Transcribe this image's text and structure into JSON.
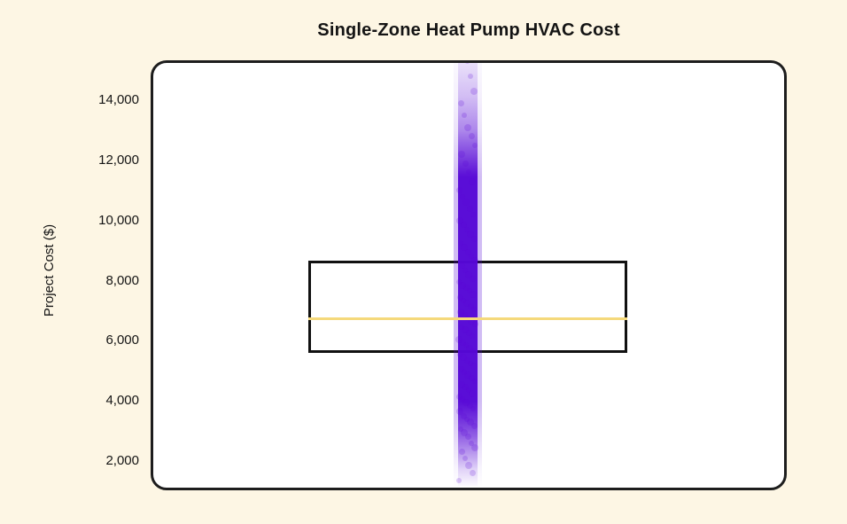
{
  "chart_data": {
    "type": "box",
    "title": "Single-Zone Heat Pump HVAC Cost",
    "ylabel": "Project Cost ($)",
    "xlabel": "",
    "ylim": [
      1000,
      15400
    ],
    "yticks": [
      2000,
      4000,
      6000,
      8000,
      10000,
      12000,
      14000
    ],
    "ytick_labels": [
      "2,000",
      "4,000",
      "6,000",
      "8,000",
      "10,000",
      "12,000",
      "14,000"
    ],
    "grid": false,
    "legend": "none",
    "box": {
      "q1": 5600,
      "median": 6700,
      "q3": 8650
    },
    "strip_overlay": {
      "description": "dense jittered strip of project-cost samples, fading at extremes",
      "min": 1350,
      "max": 15300,
      "points": [
        1350,
        1600,
        1850,
        2100,
        2300,
        2450,
        2600,
        2800,
        2950,
        3050,
        3150,
        3300,
        3400,
        3500,
        3650,
        3750,
        3850,
        3950,
        4050,
        4150,
        4250,
        4350,
        4450,
        4550,
        4650,
        4750,
        4850,
        4950,
        5050,
        5150,
        5250,
        5350,
        5450,
        5550,
        5650,
        5750,
        5850,
        5950,
        6050,
        6150,
        6250,
        6350,
        6450,
        6550,
        6650,
        6750,
        6850,
        6950,
        7050,
        7150,
        7250,
        7350,
        7450,
        7550,
        7650,
        7750,
        7850,
        7950,
        8050,
        8200,
        8350,
        8500,
        8650,
        8800,
        8950,
        9100,
        9250,
        9400,
        9550,
        9700,
        9850,
        10000,
        10200,
        10400,
        10600,
        10800,
        11000,
        11300,
        11600,
        11900,
        12200,
        12500,
        12800,
        13100,
        13500,
        13900,
        14300,
        14800,
        15300
      ]
    },
    "colors": {
      "background": "#FDF6E4",
      "panel": "#FFFFFF",
      "panel_border": "#1D1D1D",
      "box_border": "#111111",
      "median_line": "#F5D97B",
      "strip": "#5906D9",
      "text": "#141414"
    }
  }
}
